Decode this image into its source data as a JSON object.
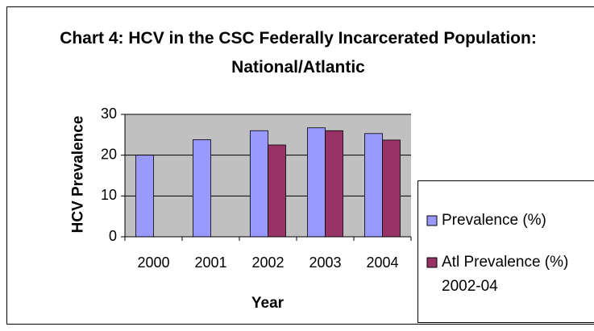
{
  "chart_data": {
    "type": "bar",
    "title": "Chart 4: HCV in the CSC Federally Incarcerated Population:  National/Atlantic",
    "x_label": "Year",
    "y_label": "HCV Prevalence",
    "categories": [
      "2000",
      "2001",
      "2002",
      "2003",
      "2004"
    ],
    "series": [
      {
        "name": "Prevalence (%)",
        "color": "#9999ff",
        "values": [
          20,
          23.8,
          26,
          26.7,
          25.3
        ]
      },
      {
        "name": "Atl Prevalence (%) 2002-04",
        "color": "#993366",
        "values": [
          null,
          null,
          22.5,
          26,
          23.7
        ]
      }
    ],
    "ylim": [
      0,
      30
    ],
    "yticks": [
      0,
      10,
      20,
      30
    ],
    "grid": true,
    "legend": "right"
  }
}
